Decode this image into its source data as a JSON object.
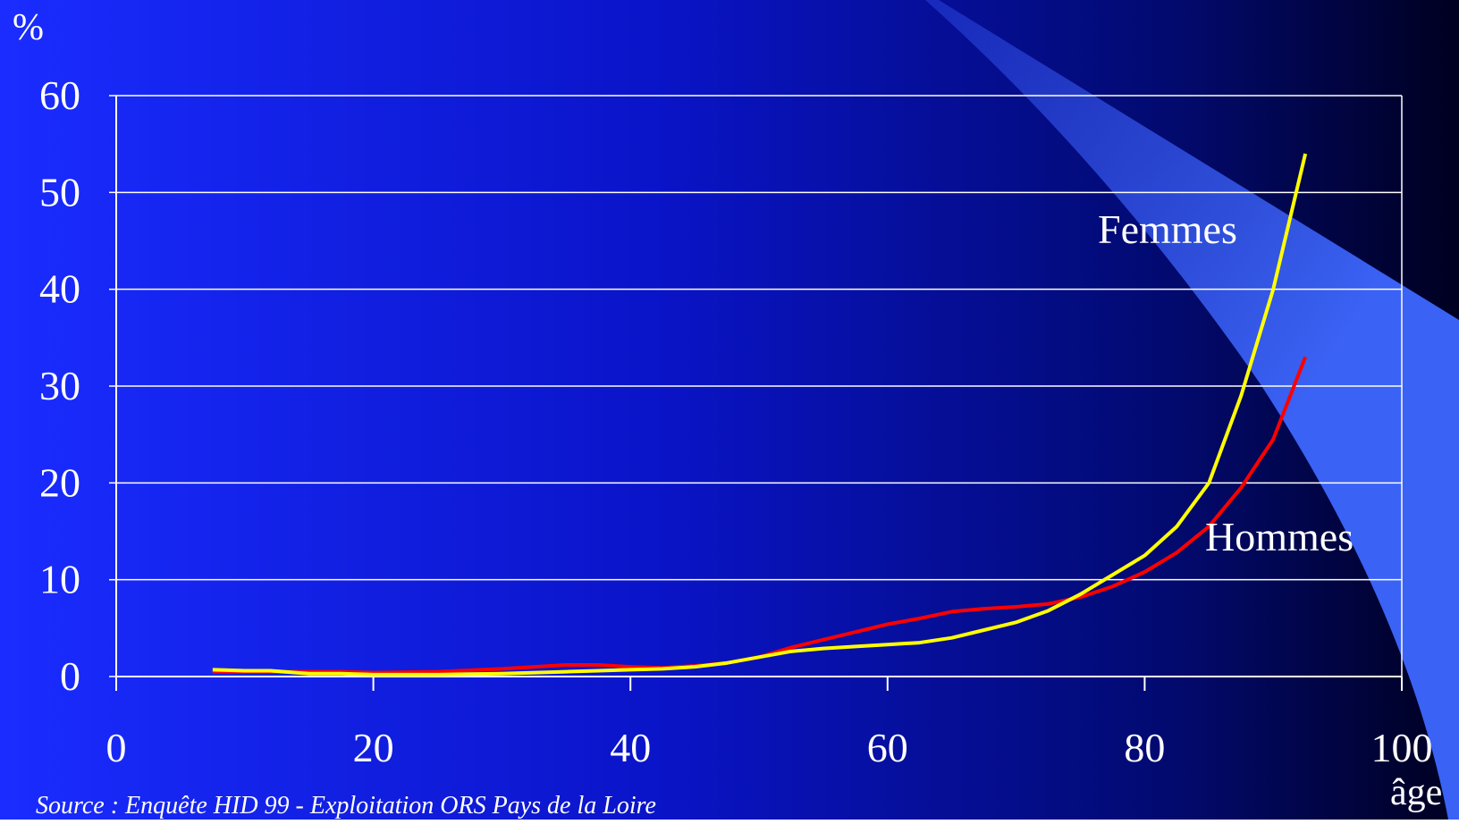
{
  "chart_data": {
    "type": "line",
    "y_label": "%",
    "x_label": "âge",
    "source": "Source : Enquête HID 99 - Exploitation ORS Pays de la Loire",
    "x": [
      7.5,
      10,
      12,
      15,
      17.5,
      20,
      25,
      30,
      35,
      37.5,
      40,
      42.5,
      45,
      47.5,
      50,
      52.5,
      55,
      57.5,
      60,
      62.5,
      65,
      67.5,
      70,
      72.5,
      75,
      77.5,
      80,
      82.5,
      85,
      87.5,
      90,
      92.5
    ],
    "series": [
      {
        "name": "Hommes",
        "color": "#ff0000",
        "values": [
          0.5,
          0.5,
          0.5,
          0.5,
          0.5,
          0.4,
          0.5,
          0.8,
          1.2,
          1.2,
          1.0,
          0.9,
          1.1,
          1.4,
          2.0,
          3.0,
          3.8,
          4.6,
          5.4,
          6.0,
          6.7,
          7.0,
          7.2,
          7.5,
          8.2,
          9.3,
          10.8,
          12.8,
          15.5,
          19.5,
          24.5,
          33
        ]
      },
      {
        "name": "Femmes",
        "color": "#ffff00",
        "values": [
          0.7,
          0.6,
          0.6,
          0.3,
          0.3,
          0.2,
          0.2,
          0.3,
          0.5,
          0.6,
          0.7,
          0.8,
          1.0,
          1.4,
          2.0,
          2.6,
          2.9,
          3.1,
          3.3,
          3.5,
          4.0,
          4.8,
          5.6,
          6.8,
          8.5,
          10.5,
          12.5,
          15.5,
          20,
          29,
          40,
          54
        ]
      }
    ],
    "xlim": [
      0,
      100
    ],
    "xticks": [
      0,
      20,
      40,
      60,
      80,
      100
    ],
    "ylim": [
      0,
      60
    ],
    "yticks": [
      0,
      10,
      20,
      30,
      40,
      50,
      60
    ],
    "grid": true
  }
}
